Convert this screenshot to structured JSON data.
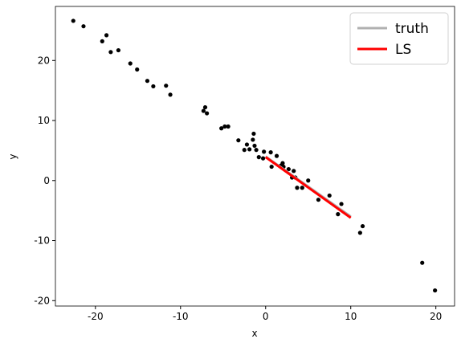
{
  "chart_data": {
    "type": "scatter",
    "xlabel": "x",
    "ylabel": "y",
    "xlim": [
      -24.7,
      22.2
    ],
    "ylim": [
      -20.9,
      29.0
    ],
    "xticks": [
      -20,
      -10,
      0,
      10,
      20
    ],
    "yticks": [
      -20,
      -10,
      0,
      10,
      20
    ],
    "legend": "upper right",
    "points": {
      "color": "#000000",
      "x": [
        -22.6,
        -21.4,
        -19.2,
        -18.7,
        -18.2,
        -17.3,
        -15.9,
        -15.1,
        -13.9,
        -13.2,
        -11.7,
        -11.2,
        -7.3,
        -7.1,
        -6.9,
        -5.2,
        -4.8,
        -4.4,
        -3.2,
        -2.5,
        -2.2,
        -1.9,
        -1.5,
        -1.4,
        -1.3,
        -1.1,
        -0.8,
        -0.3,
        -0.2,
        0.6,
        0.7,
        1.3,
        1.8,
        2.0,
        2.1,
        2.7,
        3.1,
        3.3,
        3.5,
        3.7,
        4.3,
        5.0,
        6.2,
        7.5,
        8.5,
        8.9,
        11.1,
        11.4,
        18.4,
        19.9
      ],
      "y": [
        26.6,
        25.7,
        23.2,
        24.2,
        21.4,
        21.7,
        19.5,
        18.5,
        16.6,
        15.7,
        15.8,
        14.3,
        11.6,
        12.2,
        11.2,
        8.7,
        9.0,
        9.0,
        6.7,
        5.1,
        6.0,
        5.2,
        6.8,
        7.8,
        5.8,
        5.1,
        3.9,
        3.7,
        4.8,
        4.7,
        2.3,
        4.1,
        2.5,
        2.9,
        2.3,
        1.9,
        0.5,
        1.6,
        0.5,
        -1.2,
        -1.2,
        0.0,
        -3.2,
        -2.5,
        -5.6,
        -3.9,
        -8.7,
        -7.6,
        -13.7,
        -18.3
      ]
    },
    "series": [
      {
        "name": "truth",
        "color": "#b0b0b0",
        "x": [
          0,
          10
        ],
        "values": [
          4.0,
          -6.0
        ]
      },
      {
        "name": "LS",
        "color": "#ff0000",
        "x": [
          0,
          10
        ],
        "values": [
          3.9,
          -6.2
        ]
      }
    ]
  }
}
